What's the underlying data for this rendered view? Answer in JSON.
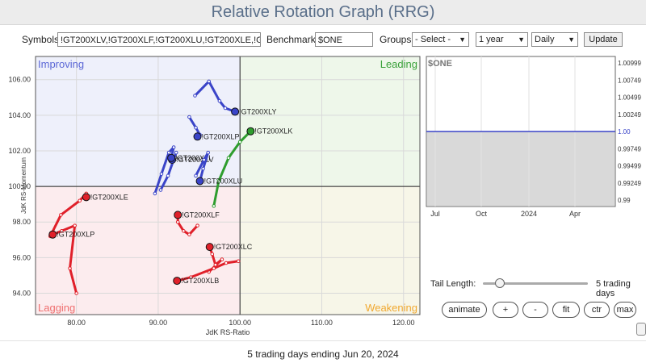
{
  "page_title": "Relative Rotation Graph (RRG)",
  "controls": {
    "symbols_label": "Symbols:",
    "symbols_value": "!GT200XLV,!GT200XLF,!GT200XLU,!GT200XLE,!G",
    "benchmark_label": "Benchmark:",
    "benchmark_value": "$ONE",
    "groups_label": "Groups:",
    "groups_value": "- Select -",
    "period_value": "1 year",
    "interval_value": "Daily",
    "update_label": "Update"
  },
  "quadrants": {
    "improving": "Improving",
    "leading": "Leading",
    "lagging": "Lagging",
    "weakening": "Weakening"
  },
  "colors": {
    "improving": "#5b67d6",
    "leading": "#3aa13a",
    "lagging": "#ef6f6f",
    "weakening": "#f0a830",
    "blue": "#3a44c8",
    "green": "#2e9d2e",
    "red": "#e0202a"
  },
  "axes": {
    "xlabel": "JdK RS-Ratio",
    "ylabel": "JdK RS-Momentum",
    "xlim": [
      75,
      122
    ],
    "ylim": [
      92.8,
      107.3
    ],
    "x_ticks": [
      "80.00",
      "90.00",
      "100.00",
      "110.00",
      "120.00"
    ],
    "y_ticks": [
      "94.00",
      "96.00",
      "98.00",
      "100.00",
      "102.00",
      "104.00",
      "106.00"
    ]
  },
  "series": [
    {
      "name": "!GT200XLY",
      "color": "blue",
      "points": [
        [
          94.5,
          105.1
        ],
        [
          96.2,
          105.9
        ],
        [
          97.5,
          104.8
        ],
        [
          98.2,
          104.4
        ],
        [
          99.4,
          104.2
        ]
      ]
    },
    {
      "name": "!GT200XLK",
      "color": "green",
      "points": [
        [
          96.8,
          98.9
        ],
        [
          97.4,
          100.3
        ],
        [
          98.6,
          101.6
        ],
        [
          100.0,
          102.5
        ],
        [
          101.3,
          103.1
        ]
      ]
    },
    {
      "name": "!GT200XLP",
      "color": "blue",
      "points": [
        [
          93.8,
          103.9
        ],
        [
          94.6,
          103.3
        ],
        [
          95.1,
          102.9
        ],
        [
          94.9,
          102.8
        ],
        [
          94.8,
          102.8
        ]
      ]
    },
    {
      "name": "!GT200XLV",
      "color": "blue",
      "points": [
        [
          90.3,
          99.8
        ],
        [
          91.2,
          100.6
        ],
        [
          92.2,
          101.9
        ],
        [
          91.9,
          101.6
        ],
        [
          91.7,
          101.5
        ]
      ]
    },
    {
      "name": "!GT200XLI",
      "color": "blue",
      "points": [
        [
          89.6,
          99.6
        ],
        [
          90.4,
          100.7
        ],
        [
          91.3,
          101.9
        ],
        [
          91.9,
          102.2
        ],
        [
          91.6,
          101.6
        ]
      ]
    },
    {
      "name": "!GT200XLU",
      "color": "blue",
      "points": [
        [
          94.6,
          100.6
        ],
        [
          95.6,
          101.5
        ],
        [
          96.1,
          101.9
        ],
        [
          95.5,
          101.0
        ],
        [
          95.1,
          100.3
        ]
      ]
    },
    {
      "name": "!GT200XLE",
      "color": "red",
      "points": [
        [
          76.8,
          97.2
        ],
        [
          78.1,
          98.4
        ],
        [
          80.4,
          99.2
        ],
        [
          81.2,
          99.6
        ],
        [
          81.2,
          99.4
        ]
      ]
    },
    {
      "name": "!GT200XLF",
      "color": "red",
      "points": [
        [
          94.8,
          97.8
        ],
        [
          93.8,
          97.3
        ],
        [
          93.1,
          97.5
        ],
        [
          92.4,
          98.0
        ],
        [
          92.4,
          98.4
        ]
      ]
    },
    {
      "name": "!GT200XLP",
      "color": "red",
      "points": [
        [
          80.0,
          94.0
        ],
        [
          79.2,
          95.4
        ],
        [
          79.8,
          97.8
        ],
        [
          78.2,
          97.5
        ],
        [
          77.1,
          97.3
        ]
      ]
    },
    {
      "name": "!GT200XLC",
      "color": "red",
      "points": [
        [
          96.2,
          95.2
        ],
        [
          97.8,
          95.9
        ],
        [
          97.0,
          95.6
        ],
        [
          96.6,
          96.2
        ],
        [
          96.3,
          96.6
        ]
      ]
    },
    {
      "name": "!GT200XLB",
      "color": "red",
      "points": [
        [
          99.8,
          95.8
        ],
        [
          98.3,
          95.7
        ],
        [
          96.8,
          95.4
        ],
        [
          94.0,
          94.9
        ],
        [
          92.3,
          94.7
        ]
      ]
    }
  ],
  "right_chart": {
    "title": "$ONE",
    "y_ticks": [
      "1.00999",
      "1.00749",
      "1.00499",
      "1.00249",
      "1.00",
      "0.99749",
      "0.99499",
      "0.99249",
      "0.99"
    ],
    "x_ticks": [
      "Jul",
      "Oct",
      "2024",
      "Apr"
    ],
    "value": 1.0
  },
  "tail": {
    "label": "Tail Length:",
    "value_text": "5 trading days",
    "days": 5
  },
  "buttons": {
    "animate": "animate",
    "plus": "+",
    "minus": "-",
    "fit": "fit",
    "ctr": "ctr",
    "max": "max"
  },
  "footer": "5 trading days ending Jun 20, 2024"
}
